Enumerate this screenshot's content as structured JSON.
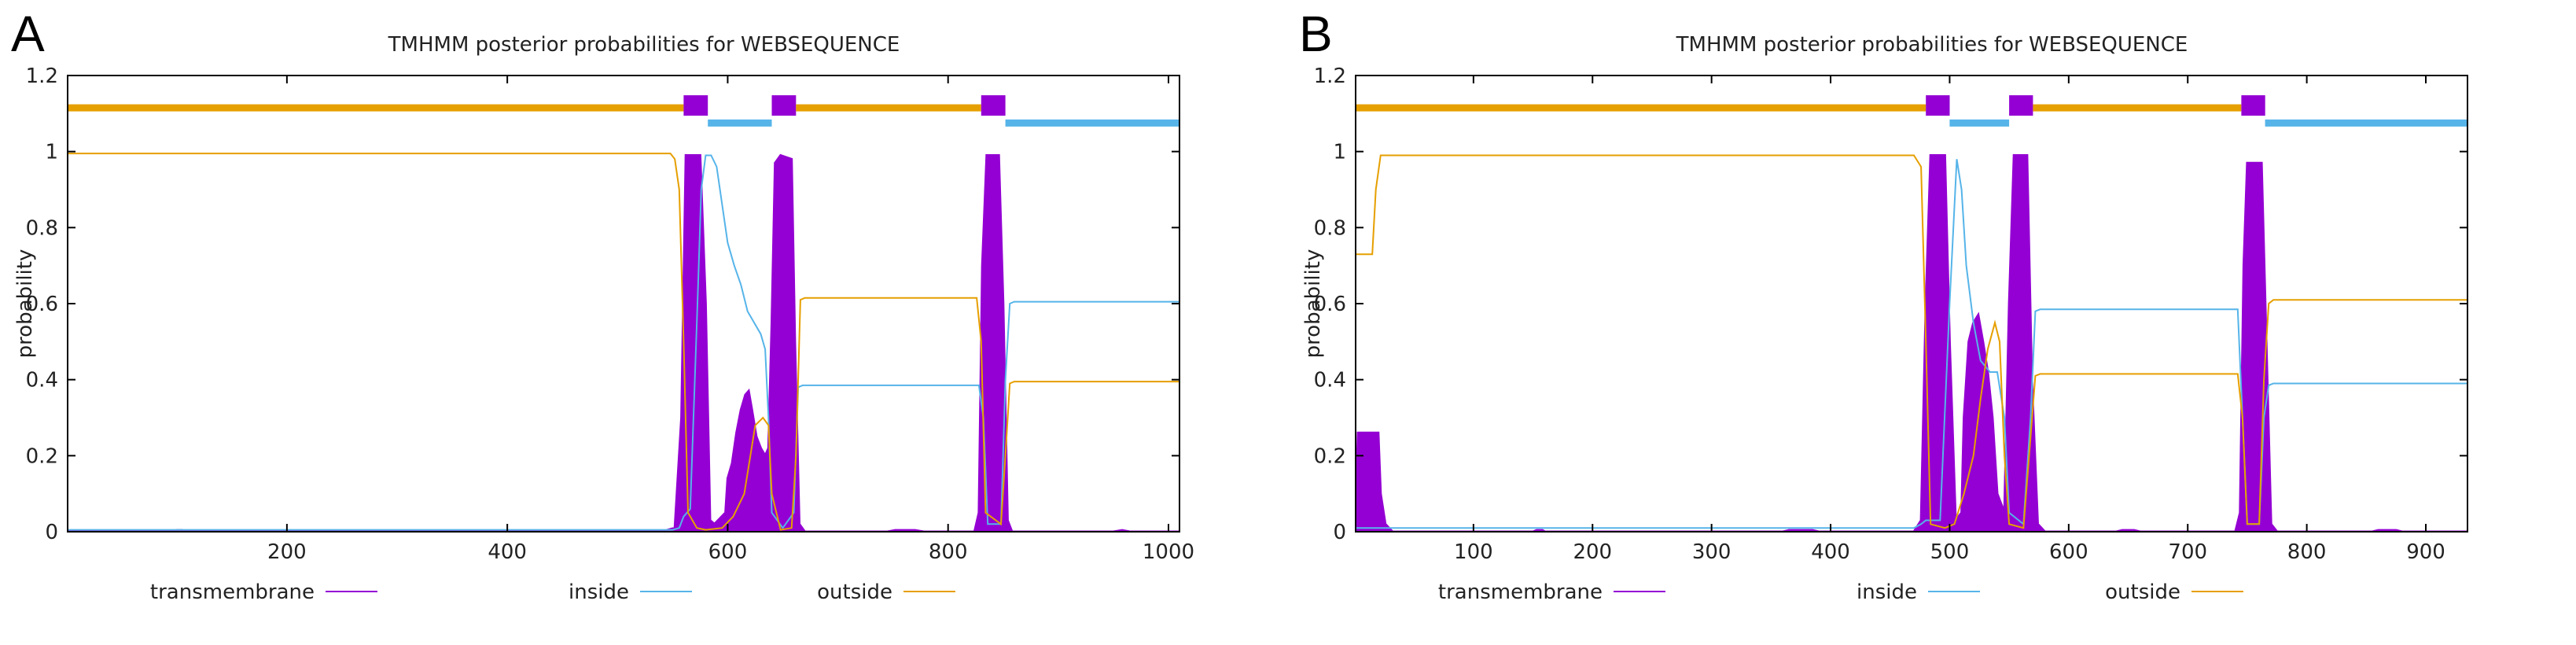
{
  "chart_data": [
    {
      "panel_label": "A",
      "type": "line",
      "title": "TMHMM posterior probabilities for WEBSEQUENCE",
      "xlabel": "",
      "ylabel": "probability",
      "xlim": [
        1,
        1010
      ],
      "ylim": [
        0,
        1.2
      ],
      "x_ticks": [
        200,
        400,
        600,
        800,
        1000
      ],
      "y_ticks": [
        0,
        0.2,
        0.4,
        0.6,
        0.8,
        1,
        1.2
      ],
      "y_tick_labels": [
        "0",
        "0.2",
        "0.4",
        "0.6",
        "0.8",
        "1",
        "1.2"
      ],
      "grid": false,
      "legend": [
        {
          "name": "transmembrane",
          "color": "#9400d3"
        },
        {
          "name": "inside",
          "color": "#56b4e9"
        },
        {
          "name": "outside",
          "color": "#e69f00"
        }
      ],
      "topology": [
        {
          "type": "outside",
          "start": 1,
          "end": 560
        },
        {
          "type": "transmembrane",
          "start": 560,
          "end": 582
        },
        {
          "type": "inside",
          "start": 582,
          "end": 640
        },
        {
          "type": "transmembrane",
          "start": 640,
          "end": 662
        },
        {
          "type": "outside",
          "start": 662,
          "end": 830
        },
        {
          "type": "transmembrane",
          "start": 830,
          "end": 852
        },
        {
          "type": "inside",
          "start": 852,
          "end": 1010
        }
      ],
      "series": [
        {
          "name": "transmembrane",
          "color": "#9400d3",
          "fill": true,
          "points": [
            [
              1,
              0
            ],
            [
              95,
              0
            ],
            [
              100,
              0.004
            ],
            [
              105,
              0.004
            ],
            [
              110,
              0
            ],
            [
              320,
              0
            ],
            [
              325,
              0.003
            ],
            [
              335,
              0.003
            ],
            [
              340,
              0
            ],
            [
              540,
              0
            ],
            [
              552,
              0.01
            ],
            [
              558,
              0.3
            ],
            [
              562,
              0.99
            ],
            [
              575,
              0.99
            ],
            [
              580,
              0.6
            ],
            [
              584,
              0.03
            ],
            [
              588,
              0.02
            ],
            [
              598,
              0.05
            ],
            [
              600,
              0.14
            ],
            [
              604,
              0.18
            ],
            [
              608,
              0.26
            ],
            [
              612,
              0.32
            ],
            [
              616,
              0.36
            ],
            [
              619,
              0.37
            ],
            [
              622,
              0.32
            ],
            [
              626,
              0.25
            ],
            [
              630,
              0.22
            ],
            [
              634,
              0.2
            ],
            [
              637,
              0.22
            ],
            [
              640,
              0.55
            ],
            [
              643,
              0.97
            ],
            [
              648,
              0.99
            ],
            [
              658,
              0.98
            ],
            [
              661,
              0.5
            ],
            [
              665,
              0.02
            ],
            [
              670,
              0
            ],
            [
              745,
              0
            ],
            [
              752,
              0.004
            ],
            [
              770,
              0.004
            ],
            [
              778,
              0
            ],
            [
              824,
              0
            ],
            [
              828,
              0.05
            ],
            [
              831,
              0.7
            ],
            [
              835,
              0.99
            ],
            [
              846,
              0.99
            ],
            [
              850,
              0.6
            ],
            [
              854,
              0.03
            ],
            [
              858,
              0
            ],
            [
              950,
              0
            ],
            [
              958,
              0.004
            ],
            [
              965,
              0
            ],
            [
              1010,
              0
            ]
          ]
        },
        {
          "name": "inside",
          "color": "#56b4e9",
          "fill": false,
          "points": [
            [
              1,
              0.005
            ],
            [
              550,
              0.005
            ],
            [
              556,
              0.01
            ],
            [
              560,
              0.04
            ],
            [
              566,
              0.06
            ],
            [
              572,
              0.55
            ],
            [
              576,
              0.9
            ],
            [
              580,
              0.99
            ],
            [
              585,
              0.99
            ],
            [
              590,
              0.96
            ],
            [
              595,
              0.86
            ],
            [
              600,
              0.76
            ],
            [
              606,
              0.7
            ],
            [
              612,
              0.65
            ],
            [
              618,
              0.58
            ],
            [
              624,
              0.55
            ],
            [
              630,
              0.52
            ],
            [
              634,
              0.48
            ],
            [
              637,
              0.3
            ],
            [
              640,
              0.05
            ],
            [
              650,
              0.01
            ],
            [
              660,
              0.05
            ],
            [
              664,
              0.38
            ],
            [
              668,
              0.385
            ],
            [
              828,
              0.385
            ],
            [
              832,
              0.3
            ],
            [
              836,
              0.02
            ],
            [
              848,
              0.02
            ],
            [
              852,
              0.4
            ],
            [
              856,
              0.6
            ],
            [
              860,
              0.605
            ],
            [
              1010,
              0.605
            ]
          ]
        },
        {
          "name": "outside",
          "color": "#e69f00",
          "fill": false,
          "points": [
            [
              1,
              0.995
            ],
            [
              548,
              0.995
            ],
            [
              552,
              0.98
            ],
            [
              556,
              0.9
            ],
            [
              560,
              0.5
            ],
            [
              564,
              0.05
            ],
            [
              572,
              0.01
            ],
            [
              580,
              0.005
            ],
            [
              595,
              0.01
            ],
            [
              605,
              0.04
            ],
            [
              615,
              0.1
            ],
            [
              625,
              0.28
            ],
            [
              632,
              0.3
            ],
            [
              637,
              0.28
            ],
            [
              640,
              0.1
            ],
            [
              648,
              0.005
            ],
            [
              658,
              0.01
            ],
            [
              662,
              0.2
            ],
            [
              666,
              0.61
            ],
            [
              670,
              0.615
            ],
            [
              826,
              0.615
            ],
            [
              830,
              0.5
            ],
            [
              834,
              0.05
            ],
            [
              848,
              0.02
            ],
            [
              852,
              0.2
            ],
            [
              856,
              0.39
            ],
            [
              860,
              0.395
            ],
            [
              1010,
              0.395
            ]
          ]
        }
      ]
    },
    {
      "panel_label": "B",
      "type": "line",
      "title": "TMHMM posterior probabilities for WEBSEQUENCE",
      "xlabel": "",
      "ylabel": "probability",
      "xlim": [
        1,
        935
      ],
      "ylim": [
        0,
        1.2
      ],
      "x_ticks": [
        100,
        200,
        300,
        400,
        500,
        600,
        700,
        800,
        900
      ],
      "y_ticks": [
        0,
        0.2,
        0.4,
        0.6,
        0.8,
        1,
        1.2
      ],
      "y_tick_labels": [
        "0",
        "0.2",
        "0.4",
        "0.6",
        "0.8",
        "1",
        "1.2"
      ],
      "grid": false,
      "legend": [
        {
          "name": "transmembrane",
          "color": "#9400d3"
        },
        {
          "name": "inside",
          "color": "#56b4e9"
        },
        {
          "name": "outside",
          "color": "#e69f00"
        }
      ],
      "topology": [
        {
          "type": "outside",
          "start": 1,
          "end": 480
        },
        {
          "type": "transmembrane",
          "start": 480,
          "end": 500
        },
        {
          "type": "inside",
          "start": 500,
          "end": 550
        },
        {
          "type": "transmembrane",
          "start": 550,
          "end": 570
        },
        {
          "type": "outside",
          "start": 570,
          "end": 745
        },
        {
          "type": "transmembrane",
          "start": 745,
          "end": 765
        },
        {
          "type": "inside",
          "start": 765,
          "end": 935
        }
      ],
      "series": [
        {
          "name": "transmembrane",
          "color": "#9400d3",
          "fill": true,
          "points": [
            [
              1,
              0
            ],
            [
              3,
              0.26
            ],
            [
              20,
              0.26
            ],
            [
              22,
              0.1
            ],
            [
              26,
              0.02
            ],
            [
              32,
              0
            ],
            [
              150,
              0
            ],
            [
              153,
              0.004
            ],
            [
              158,
              0.004
            ],
            [
              160,
              0
            ],
            [
              360,
              0
            ],
            [
              365,
              0.004
            ],
            [
              385,
              0.004
            ],
            [
              390,
              0
            ],
            [
              470,
              0
            ],
            [
              476,
              0.03
            ],
            [
              480,
              0.6
            ],
            [
              484,
              0.99
            ],
            [
              496,
              0.99
            ],
            [
              500,
              0.5
            ],
            [
              505,
              0.03
            ],
            [
              510,
              0.05
            ],
            [
              512,
              0.3
            ],
            [
              516,
              0.5
            ],
            [
              520,
              0.55
            ],
            [
              524,
              0.57
            ],
            [
              528,
              0.5
            ],
            [
              532,
              0.42
            ],
            [
              536,
              0.3
            ],
            [
              540,
              0.1
            ],
            [
              546,
              0.05
            ],
            [
              550,
              0.6
            ],
            [
              554,
              0.99
            ],
            [
              565,
              0.99
            ],
            [
              569,
              0.4
            ],
            [
              574,
              0.02
            ],
            [
              580,
              0
            ],
            [
              640,
              0
            ],
            [
              645,
              0.004
            ],
            [
              655,
              0.004
            ],
            [
              660,
              0
            ],
            [
              740,
              0
            ],
            [
              744,
              0.05
            ],
            [
              747,
              0.7
            ],
            [
              750,
              0.97
            ],
            [
              762,
              0.97
            ],
            [
              766,
              0.5
            ],
            [
              770,
              0.02
            ],
            [
              775,
              0
            ],
            [
              855,
              0
            ],
            [
              860,
              0.004
            ],
            [
              875,
              0.004
            ],
            [
              880,
              0
            ],
            [
              935,
              0
            ]
          ]
        },
        {
          "name": "inside",
          "color": "#56b4e9",
          "fill": false,
          "points": [
            [
              1,
              0.01
            ],
            [
              470,
              0.01
            ],
            [
              476,
              0.02
            ],
            [
              480,
              0.03
            ],
            [
              492,
              0.03
            ],
            [
              500,
              0.6
            ],
            [
              506,
              0.98
            ],
            [
              510,
              0.9
            ],
            [
              514,
              0.7
            ],
            [
              520,
              0.55
            ],
            [
              526,
              0.45
            ],
            [
              534,
              0.42
            ],
            [
              540,
              0.42
            ],
            [
              546,
              0.3
            ],
            [
              550,
              0.05
            ],
            [
              562,
              0.02
            ],
            [
              568,
              0.3
            ],
            [
              572,
              0.58
            ],
            [
              576,
              0.585
            ],
            [
              742,
              0.585
            ],
            [
              746,
              0.3
            ],
            [
              750,
              0.02
            ],
            [
              760,
              0.02
            ],
            [
              764,
              0.3
            ],
            [
              768,
              0.385
            ],
            [
              772,
              0.39
            ],
            [
              935,
              0.39
            ]
          ]
        },
        {
          "name": "outside",
          "color": "#e69f00",
          "fill": false,
          "points": [
            [
              1,
              0.73
            ],
            [
              15,
              0.73
            ],
            [
              18,
              0.9
            ],
            [
              22,
              0.99
            ],
            [
              470,
              0.99
            ],
            [
              476,
              0.96
            ],
            [
              480,
              0.5
            ],
            [
              484,
              0.02
            ],
            [
              496,
              0.01
            ],
            [
              504,
              0.02
            ],
            [
              512,
              0.1
            ],
            [
              520,
              0.2
            ],
            [
              526,
              0.35
            ],
            [
              532,
              0.48
            ],
            [
              538,
              0.55
            ],
            [
              542,
              0.5
            ],
            [
              546,
              0.2
            ],
            [
              550,
              0.02
            ],
            [
              562,
              0.01
            ],
            [
              568,
              0.25
            ],
            [
              572,
              0.41
            ],
            [
              576,
              0.415
            ],
            [
              742,
              0.415
            ],
            [
              746,
              0.3
            ],
            [
              750,
              0.02
            ],
            [
              760,
              0.02
            ],
            [
              764,
              0.4
            ],
            [
              768,
              0.6
            ],
            [
              772,
              0.61
            ],
            [
              935,
              0.61
            ]
          ]
        }
      ]
    }
  ]
}
